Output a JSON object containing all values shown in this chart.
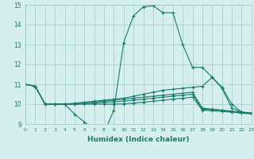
{
  "line1_x": [
    0,
    1,
    2,
    3,
    4,
    5,
    6,
    7,
    8,
    9,
    10,
    11,
    12,
    13,
    14,
    15,
    16,
    17,
    18,
    19,
    20,
    21,
    22,
    23
  ],
  "line1_y": [
    11.0,
    10.9,
    10.0,
    10.0,
    10.0,
    9.5,
    9.1,
    8.75,
    8.55,
    9.7,
    13.1,
    14.45,
    14.9,
    14.95,
    14.6,
    14.6,
    13.0,
    11.85,
    11.85,
    11.35,
    10.85,
    10.0,
    9.6,
    9.55
  ],
  "line2_x": [
    0,
    1,
    2,
    3,
    4,
    5,
    6,
    7,
    8,
    9,
    10,
    11,
    12,
    13,
    14,
    15,
    16,
    17,
    18,
    19,
    20,
    21,
    22,
    23
  ],
  "line2_y": [
    11.0,
    10.9,
    10.0,
    10.0,
    10.0,
    10.05,
    10.1,
    10.15,
    10.2,
    10.25,
    10.3,
    10.4,
    10.5,
    10.6,
    10.7,
    10.75,
    10.8,
    10.85,
    10.9,
    11.35,
    10.8,
    9.8,
    9.6,
    9.55
  ],
  "line3_x": [
    0,
    1,
    2,
    3,
    4,
    5,
    6,
    7,
    8,
    9,
    10,
    11,
    12,
    13,
    14,
    15,
    16,
    17,
    18,
    19,
    20,
    21,
    22,
    23
  ],
  "line3_y": [
    11.0,
    10.9,
    10.0,
    10.0,
    10.0,
    10.0,
    10.05,
    10.1,
    10.15,
    10.2,
    10.25,
    10.3,
    10.35,
    10.4,
    10.45,
    10.5,
    10.55,
    10.6,
    9.8,
    9.75,
    9.7,
    9.65,
    9.6,
    9.55
  ],
  "line4_x": [
    0,
    1,
    2,
    3,
    4,
    5,
    6,
    7,
    8,
    9,
    10,
    11,
    12,
    13,
    14,
    15,
    16,
    17,
    18,
    19,
    20,
    21,
    22,
    23
  ],
  "line4_y": [
    11.0,
    10.9,
    10.0,
    10.0,
    10.0,
    10.0,
    10.03,
    10.06,
    10.09,
    10.12,
    10.15,
    10.2,
    10.25,
    10.3,
    10.35,
    10.4,
    10.45,
    10.5,
    9.75,
    9.72,
    9.68,
    9.6,
    9.55,
    9.52
  ],
  "line5_x": [
    0,
    1,
    2,
    3,
    4,
    5,
    6,
    7,
    8,
    9,
    10,
    11,
    12,
    13,
    14,
    15,
    16,
    17,
    18,
    19,
    20,
    21,
    22,
    23
  ],
  "line5_y": [
    11.0,
    10.9,
    10.0,
    10.0,
    10.0,
    10.0,
    10.0,
    10.0,
    10.0,
    10.0,
    10.02,
    10.05,
    10.1,
    10.15,
    10.2,
    10.25,
    10.3,
    10.35,
    9.7,
    9.67,
    9.63,
    9.6,
    9.55,
    9.52
  ],
  "line_color": "#1a7a6e",
  "bg_color": "#d5efee",
  "grid_color": "#a0c8c8",
  "xlabel": "Humidex (Indice chaleur)",
  "ylim": [
    9,
    15
  ],
  "xlim": [
    0,
    23
  ],
  "yticks": [
    9,
    10,
    11,
    12,
    13,
    14,
    15
  ],
  "xticks": [
    0,
    1,
    2,
    3,
    4,
    5,
    6,
    7,
    8,
    9,
    10,
    11,
    12,
    13,
    14,
    15,
    16,
    17,
    18,
    19,
    20,
    21,
    22,
    23
  ]
}
